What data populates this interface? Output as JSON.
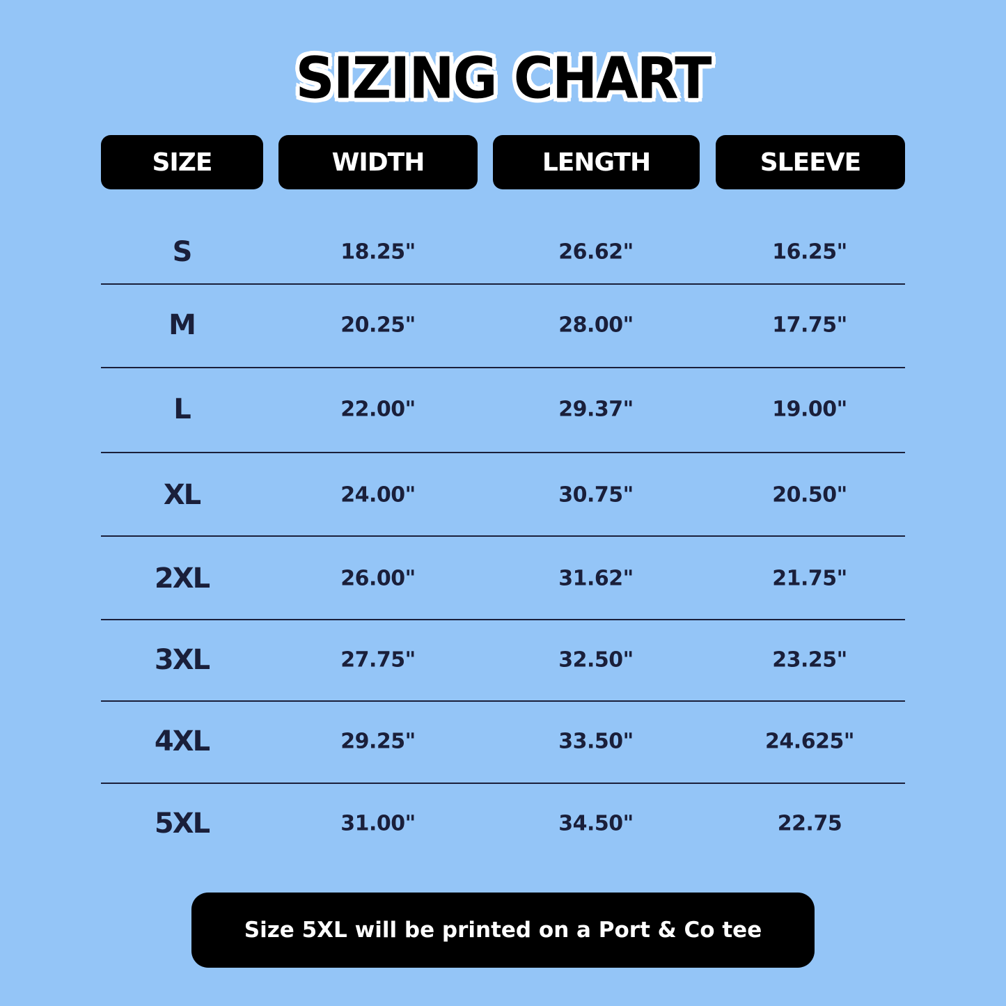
{
  "title": "SIZING CHART",
  "columns": [
    "SIZE",
    "WIDTH",
    "LENGTH",
    "SLEEVE"
  ],
  "rows": [
    [
      "S",
      "18.25\"",
      "26.62\"",
      "16.25\""
    ],
    [
      "M",
      "20.25\"",
      "28.00\"",
      "17.75\""
    ],
    [
      "L",
      "22.00\"",
      "29.37\"",
      "19.00\""
    ],
    [
      "XL",
      "24.00\"",
      "30.75\"",
      "20.50\""
    ],
    [
      "2XL",
      "26.00\"",
      "31.62\"",
      "21.75\""
    ],
    [
      "3XL",
      "27.75\"",
      "32.50\"",
      "23.25\""
    ],
    [
      "4XL",
      "29.25\"",
      "33.50\"",
      "24.625\""
    ],
    [
      "5XL",
      "31.00\"",
      "34.50\"",
      "22.75"
    ]
  ],
  "note": "Size 5XL will be printed on a Port & Co tee",
  "colors": {
    "background": "#94c5f7",
    "header_bg": "#000000",
    "text": "#1a1f3a"
  }
}
